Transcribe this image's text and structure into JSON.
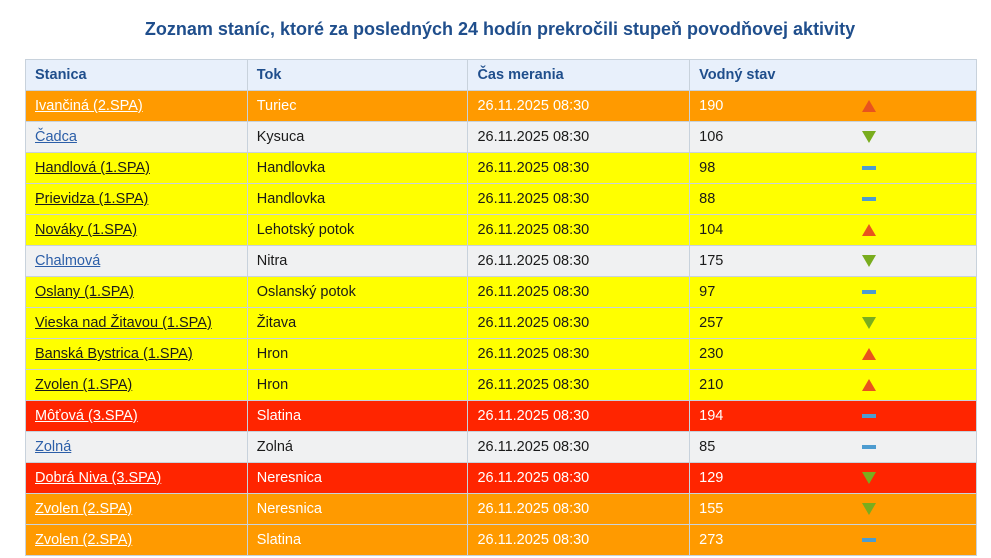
{
  "title": "Zoznam staníc, ktoré za posledných 24 hodín prekročili stupeň povodňovej aktivity",
  "table": {
    "headers": [
      "Stanica",
      "Tok",
      "Čas merania",
      "Vodný stav"
    ],
    "rows": [
      {
        "station": "Ivančiná (2.SPA)",
        "river": "Turiec",
        "time": "26.11.2025 08:30",
        "level": "190",
        "trend": "up",
        "status": "orange"
      },
      {
        "station": "Čadca",
        "river": "Kysuca",
        "time": "26.11.2025 08:30",
        "level": "106",
        "trend": "down",
        "status": "none"
      },
      {
        "station": "Handlová (1.SPA)",
        "river": "Handlovka",
        "time": "26.11.2025 08:30",
        "level": "98",
        "trend": "flat",
        "status": "yellow"
      },
      {
        "station": "Prievidza (1.SPA)",
        "river": "Handlovka",
        "time": "26.11.2025 08:30",
        "level": "88",
        "trend": "flat",
        "status": "yellow"
      },
      {
        "station": "Nováky (1.SPA)",
        "river": "Lehotský potok",
        "time": "26.11.2025 08:30",
        "level": "104",
        "trend": "up",
        "status": "yellow"
      },
      {
        "station": "Chalmová",
        "river": "Nitra",
        "time": "26.11.2025 08:30",
        "level": "175",
        "trend": "down",
        "status": "none"
      },
      {
        "station": "Oslany (1.SPA)",
        "river": "Oslanský potok",
        "time": "26.11.2025 08:30",
        "level": "97",
        "trend": "flat",
        "status": "yellow"
      },
      {
        "station": "Vieska nad Žitavou (1.SPA)",
        "river": "Žitava",
        "time": "26.11.2025 08:30",
        "level": "257",
        "trend": "down",
        "status": "yellow"
      },
      {
        "station": "Banská Bystrica (1.SPA)",
        "river": "Hron",
        "time": "26.11.2025 08:30",
        "level": "230",
        "trend": "up",
        "status": "yellow"
      },
      {
        "station": "Zvolen (1.SPA)",
        "river": "Hron",
        "time": "26.11.2025 08:30",
        "level": "210",
        "trend": "up",
        "status": "yellow"
      },
      {
        "station": "Môťová (3.SPA)",
        "river": "Slatina",
        "time": "26.11.2025 08:30",
        "level": "194",
        "trend": "flat",
        "status": "red"
      },
      {
        "station": "Zolná",
        "river": "Zolná",
        "time": "26.11.2025 08:30",
        "level": "85",
        "trend": "flat",
        "status": "none"
      },
      {
        "station": "Dobrá Niva (3.SPA)",
        "river": "Neresnica",
        "time": "26.11.2025 08:30",
        "level": "129",
        "trend": "down",
        "status": "red"
      },
      {
        "station": "Zvolen (2.SPA)",
        "river": "Neresnica",
        "time": "26.11.2025 08:30",
        "level": "155",
        "trend": "down",
        "status": "orange"
      },
      {
        "station": "Zvolen (2.SPA)",
        "river": "Slatina",
        "time": "26.11.2025 08:30",
        "level": "273",
        "trend": "flat",
        "status": "orange"
      }
    ]
  },
  "colors": {
    "orange": "#ff9a00",
    "yellow": "#ffff00",
    "red": "#ff2500",
    "none": "#f0f1f2",
    "title": "#1f4e8c",
    "trend_up": "#e8531e",
    "trend_down": "#79ad1e",
    "trend_flat": "#4d9cd0"
  }
}
